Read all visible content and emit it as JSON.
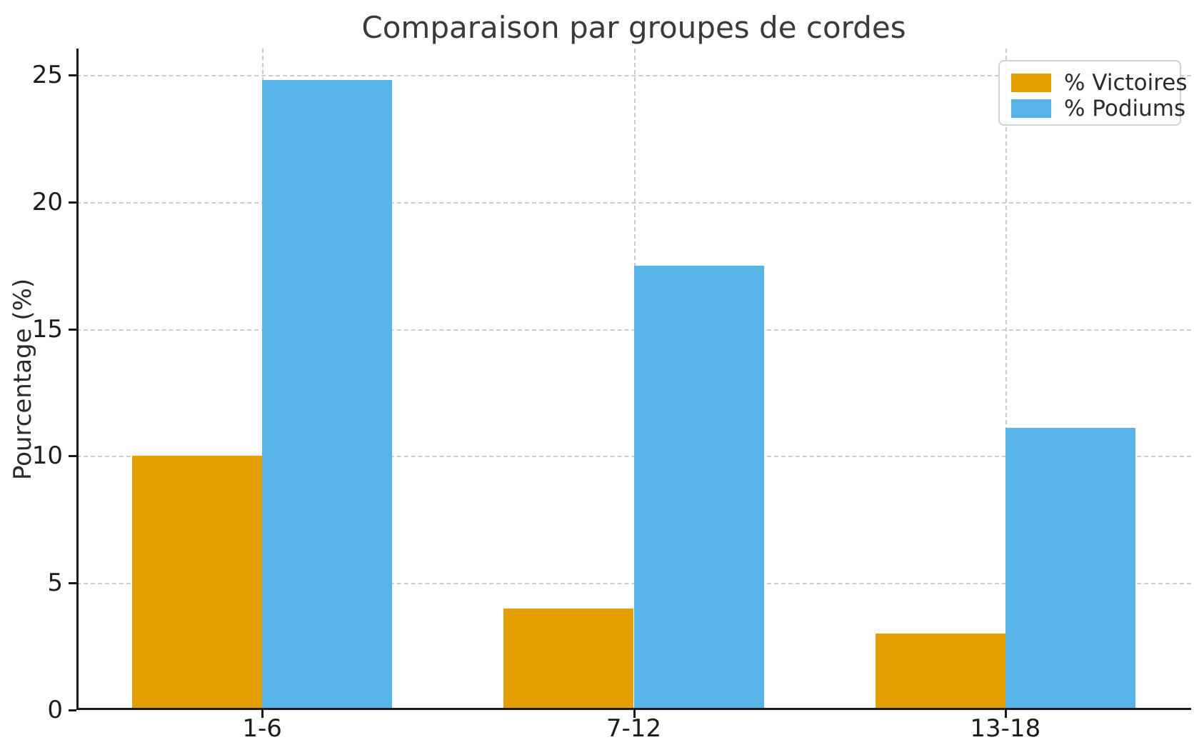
{
  "chart_data": {
    "type": "bar",
    "title": "Comparaison par groupes de cordes",
    "ylabel": "Pourcentage (%)",
    "xlabel": "",
    "categories": [
      "1-6",
      "7-12",
      "13-18"
    ],
    "series": [
      {
        "name": "% Victoires",
        "color": "#E69F00",
        "values": [
          10.0,
          4.0,
          3.0
        ]
      },
      {
        "name": "% Podiums",
        "color": "#56B4E9",
        "values": [
          24.8,
          17.5,
          11.1
        ]
      }
    ],
    "yticks": [
      0,
      5,
      10,
      15,
      20,
      25
    ],
    "ylim": [
      0,
      26.04
    ],
    "bar_width_fraction": 0.35,
    "grid": {
      "show": true,
      "style": "dashed",
      "color": "#cccccc",
      "axes": "both"
    },
    "legend_position": "upper-right",
    "axis_color": "#1a1a1a",
    "title_color": "#3a3a3a"
  }
}
